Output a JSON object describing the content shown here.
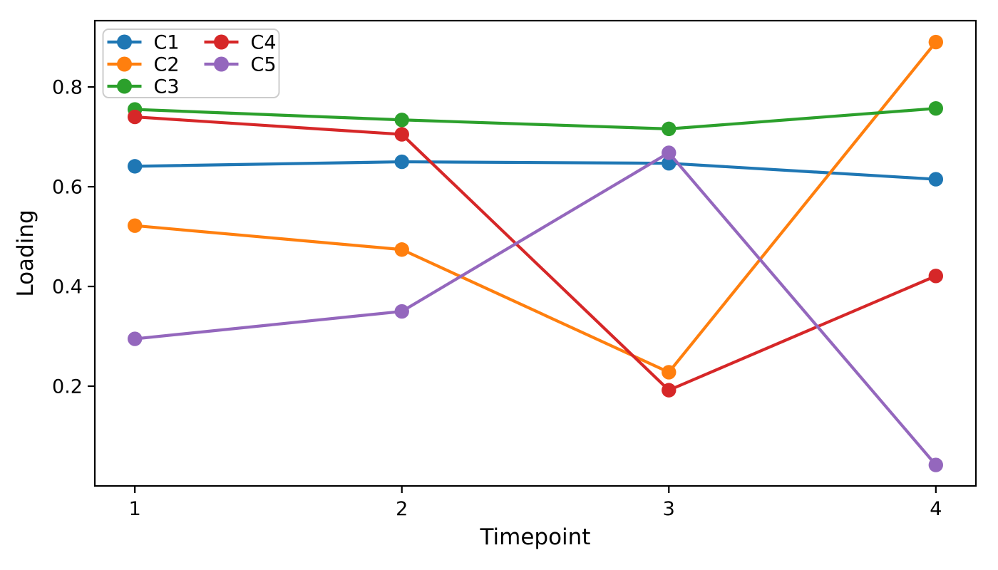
{
  "chart_data": {
    "type": "line",
    "title": "",
    "xlabel": "Timepoint",
    "ylabel": "Loading",
    "x": [
      1,
      2,
      3,
      4
    ],
    "xlim": [
      0.85,
      4.15
    ],
    "ylim": [
      0.0,
      0.933
    ],
    "xticks": [
      1,
      2,
      3,
      4
    ],
    "xtick_labels": [
      "1",
      "2",
      "3",
      "4"
    ],
    "yticks": [
      0.2,
      0.4,
      0.6,
      0.8
    ],
    "ytick_labels": [
      "0.2",
      "0.4",
      "0.6",
      "0.8"
    ],
    "grid": false,
    "marker": "circle",
    "legend_position": "upper-left",
    "legend_columns": 2,
    "legend_rows_per_column": 3,
    "series": [
      {
        "name": "C1",
        "color": "#1f77b4",
        "values": [
          0.641,
          0.65,
          0.647,
          0.615
        ]
      },
      {
        "name": "C2",
        "color": "#ff7f0e",
        "values": [
          0.522,
          0.474,
          0.228,
          0.89
        ]
      },
      {
        "name": "C3",
        "color": "#2ca02c",
        "values": [
          0.755,
          0.734,
          0.716,
          0.757
        ]
      },
      {
        "name": "C4",
        "color": "#d62728",
        "values": [
          0.74,
          0.705,
          0.192,
          0.421
        ]
      },
      {
        "name": "C5",
        "color": "#9467bd",
        "values": [
          0.295,
          0.35,
          0.668,
          0.042
        ]
      }
    ],
    "colors": {
      "spine": "#000000",
      "background": "#ffffff",
      "legend_border": "#cccccc",
      "legend_background": "#ffffff"
    }
  }
}
